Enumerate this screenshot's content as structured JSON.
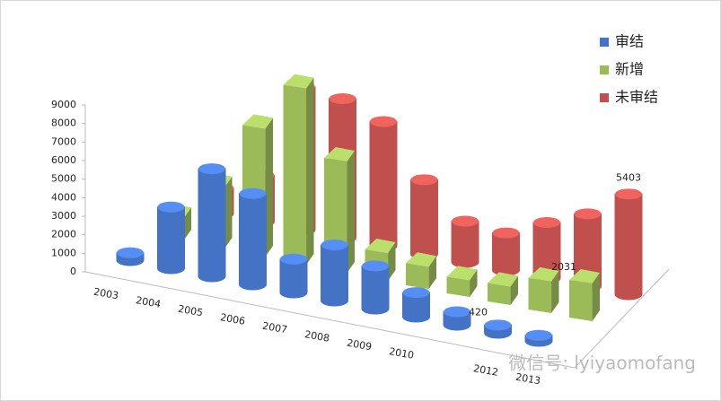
{
  "chart_data": {
    "type": "bar3d",
    "categories": [
      "2003",
      "2004",
      "2005",
      "2006",
      "2007",
      "2008",
      "2009",
      "2010",
      null,
      "2012",
      "2013"
    ],
    "series": [
      {
        "name": "审结",
        "color": "#4472c4",
        "shape": "cylinder",
        "values": [
          400,
          3300,
          5800,
          4900,
          1800,
          3000,
          2300,
          1300,
          700,
          420,
          300
        ],
        "value_labels": [
          null,
          null,
          null,
          null,
          null,
          null,
          null,
          null,
          null,
          "420",
          null
        ]
      },
      {
        "name": "新增",
        "color": "#9bbb59",
        "shape": "box",
        "values": [
          1200,
          3300,
          6900,
          9500,
          6000,
          1500,
          1200,
          900,
          1000,
          1700,
          2031
        ],
        "value_labels": [
          null,
          null,
          null,
          null,
          null,
          null,
          null,
          null,
          null,
          null,
          "2031"
        ]
      },
      {
        "name": "未审结",
        "color": "#c0504d",
        "shape": "cylinder",
        "values": [
          1400,
          2500,
          7700,
          7500,
          6700,
          4000,
          2200,
          2000,
          3000,
          3900,
          5403
        ],
        "value_labels": [
          null,
          null,
          null,
          null,
          null,
          null,
          null,
          null,
          null,
          null,
          "5403"
        ]
      }
    ],
    "ylim": [
      0,
      9000
    ],
    "yticks": [
      0,
      1000,
      2000,
      3000,
      4000,
      5000,
      6000,
      7000,
      8000,
      9000
    ],
    "legend": "top-right",
    "watermark": "微信号: lyiyaomofang"
  }
}
